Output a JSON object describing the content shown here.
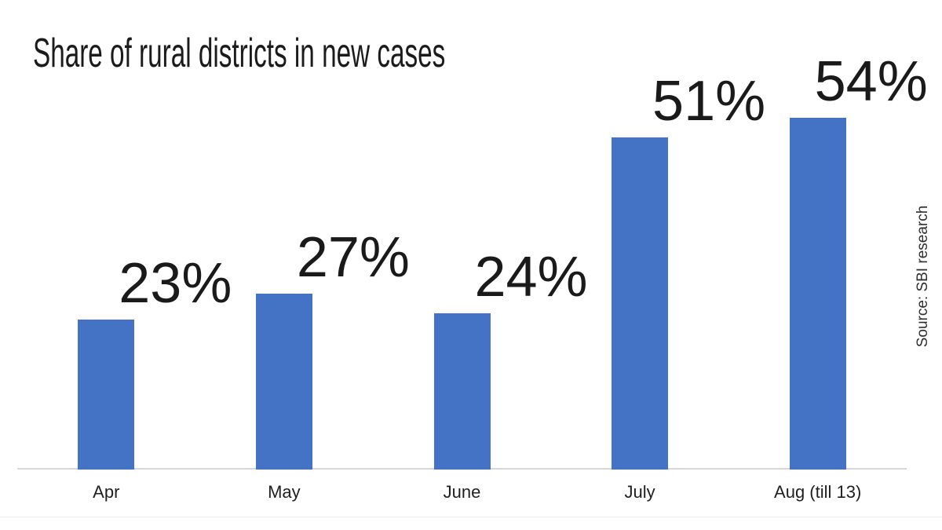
{
  "title": "Share of rural districts in new cases",
  "source_note": "Source: SBI research",
  "chart_data": {
    "type": "bar",
    "title": "Share of rural districts in new cases",
    "categories": [
      "Apr",
      "May",
      "June",
      "July",
      "Aug (till 13)"
    ],
    "values": [
      23,
      27,
      24,
      51,
      54
    ],
    "data_labels": [
      "23%",
      "27%",
      "24%",
      "51%",
      "54%"
    ],
    "xlabel": "",
    "ylabel": "",
    "ylim": [
      0,
      60
    ],
    "grid": false,
    "legend": false,
    "bar_color": "#4472C4",
    "axis_line_color": "#d7d7d7",
    "source": "Source: SBI research"
  }
}
